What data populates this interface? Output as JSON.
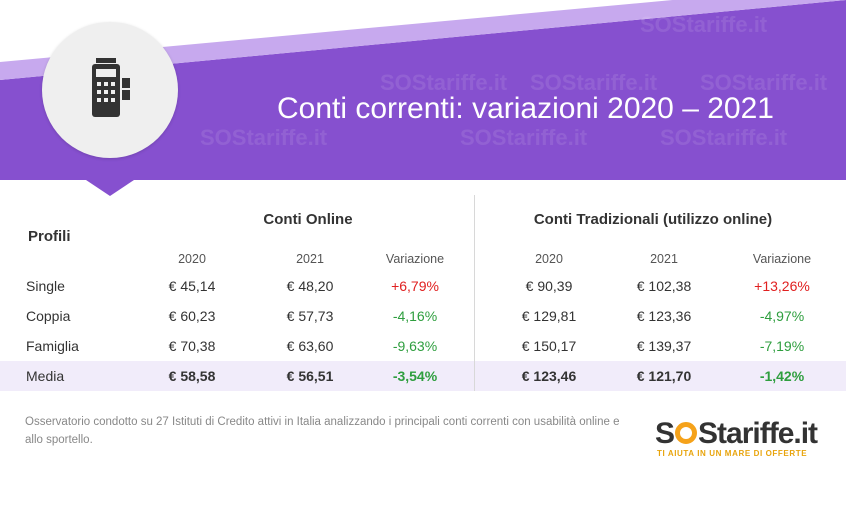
{
  "header": {
    "title": "Conti correnti: variazioni 2020 – 2021",
    "watermark": "SOStariffe.it",
    "colors": {
      "purple": "#8650cf",
      "stripe_light": "#c7a9ee"
    },
    "icon": "pos-terminal-icon"
  },
  "table": {
    "profiles_label": "Profili",
    "groups": [
      {
        "title": "Conti Online",
        "columns": [
          "2020",
          "2021",
          "Variazione"
        ]
      },
      {
        "title": "Conti Tradizionali (utilizzo online)",
        "columns": [
          "2020",
          "2021",
          "Variazione"
        ]
      }
    ],
    "rows": [
      {
        "profile": "Single",
        "online": [
          "€ 45,14",
          "€ 48,20",
          "+6,79%"
        ],
        "trad": [
          "€ 90,39",
          "€ 102,38",
          "+13,26%"
        ]
      },
      {
        "profile": "Coppia",
        "online": [
          "€ 60,23",
          "€ 57,73",
          "-4,16%"
        ],
        "trad": [
          "€ 129,81",
          "€ 123,36",
          "-4,97%"
        ]
      },
      {
        "profile": "Famiglia",
        "online": [
          "€ 70,38",
          "€ 63,60",
          "-9,63%"
        ],
        "trad": [
          "€ 150,17",
          "€ 139,37",
          "-7,19%"
        ]
      },
      {
        "profile": "Media",
        "online": [
          "€ 58,58",
          "€ 56,51",
          "-3,54%"
        ],
        "trad": [
          "€ 123,46",
          "€ 121,70",
          "-1,42%"
        ]
      }
    ],
    "colors": {
      "positive": "#e02020",
      "negative": "#2e9e3e",
      "media_band": "#f1ecfa"
    }
  },
  "footnote": "Osservatorio condotto su 27 Istituti di Credito attivi in Italia analizzando i principali conti correnti con usabilità online e allo sportello.",
  "logo": {
    "text_s": "S",
    "text_rest": "Stariffe.it",
    "tagline": "TI AIUTA IN UN MARE DI OFFERTE",
    "colors": {
      "orange": "#f5a21a",
      "dark": "#333333"
    }
  }
}
